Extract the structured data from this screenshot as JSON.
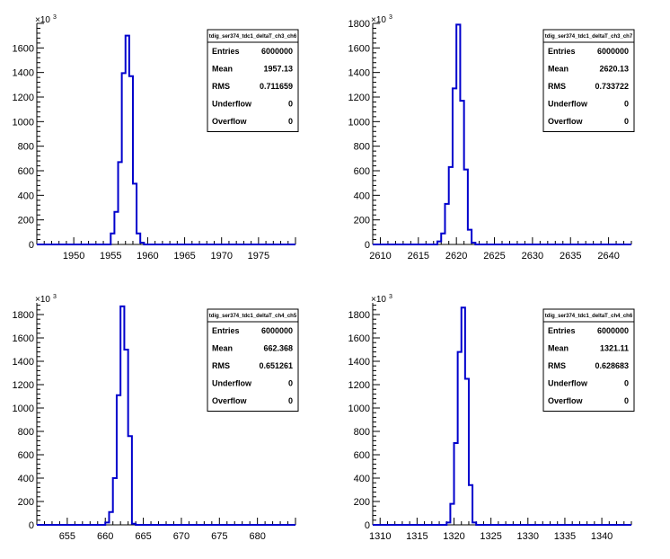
{
  "chart_data": [
    {
      "type": "histogram",
      "title": "tdig_ser374_tdc1_deltaT_ch3_ch6",
      "xlim": [
        1945,
        1980
      ],
      "ylim": [
        0,
        1800
      ],
      "y_exponent": "×10",
      "y_exponent_power": "3",
      "x_ticks": [
        1950,
        1955,
        1960,
        1965,
        1970,
        1975
      ],
      "y_ticks": [
        0,
        200,
        400,
        600,
        800,
        1000,
        1200,
        1400,
        1600
      ],
      "bin_width": 0.5,
      "bins": [
        {
          "x": 1955.0,
          "y": 90
        },
        {
          "x": 1955.5,
          "y": 265
        },
        {
          "x": 1956.0,
          "y": 670
        },
        {
          "x": 1956.5,
          "y": 1395
        },
        {
          "x": 1957.0,
          "y": 1700
        },
        {
          "x": 1957.5,
          "y": 1370
        },
        {
          "x": 1958.0,
          "y": 495
        },
        {
          "x": 1958.5,
          "y": 90
        },
        {
          "x": 1959.0,
          "y": 15
        }
      ],
      "stats": {
        "Entries": "6000000",
        "Mean": "1957.13",
        "RMS": "0.711659",
        "Underflow": "0",
        "Overflow": "0"
      }
    },
    {
      "type": "histogram",
      "title": "tdig_ser374_tdc1_deltaT_ch3_ch7",
      "xlim": [
        2609,
        2643
      ],
      "ylim": [
        0,
        1800
      ],
      "y_exponent": "×10",
      "y_exponent_power": "3",
      "x_ticks": [
        2610,
        2615,
        2620,
        2625,
        2630,
        2635,
        2640
      ],
      "y_ticks": [
        0,
        200,
        400,
        600,
        800,
        1000,
        1200,
        1400,
        1600,
        1800
      ],
      "bin_width": 0.5,
      "bins": [
        {
          "x": 2617.5,
          "y": 25
        },
        {
          "x": 2618.0,
          "y": 90
        },
        {
          "x": 2618.5,
          "y": 330
        },
        {
          "x": 2619.0,
          "y": 630
        },
        {
          "x": 2619.5,
          "y": 1270
        },
        {
          "x": 2620.0,
          "y": 1790
        },
        {
          "x": 2620.5,
          "y": 1170
        },
        {
          "x": 2621.0,
          "y": 610
        },
        {
          "x": 2621.5,
          "y": 120
        },
        {
          "x": 2622.0,
          "y": 15
        }
      ],
      "stats": {
        "Entries": "6000000",
        "Mean": "2620.13",
        "RMS": "0.733722",
        "Underflow": "0",
        "Overflow": "0"
      }
    },
    {
      "type": "histogram",
      "title": "tdig_ser374_tdc1_deltaT_ch4_ch5",
      "xlim": [
        651,
        685
      ],
      "ylim": [
        0,
        1900
      ],
      "y_exponent": "×10",
      "y_exponent_power": "3",
      "x_ticks": [
        655,
        660,
        665,
        670,
        675,
        680
      ],
      "y_ticks": [
        0,
        200,
        400,
        600,
        800,
        1000,
        1200,
        1400,
        1600,
        1800
      ],
      "bin_width": 0.5,
      "bins": [
        {
          "x": 660.0,
          "y": 20
        },
        {
          "x": 660.5,
          "y": 110
        },
        {
          "x": 661.0,
          "y": 400
        },
        {
          "x": 661.5,
          "y": 1110
        },
        {
          "x": 662.0,
          "y": 1870
        },
        {
          "x": 662.5,
          "y": 1500
        },
        {
          "x": 663.0,
          "y": 760
        },
        {
          "x": 663.5,
          "y": 10
        }
      ],
      "stats": {
        "Entries": "6000000",
        "Mean": "662.368",
        "RMS": "0.651261",
        "Underflow": "0",
        "Overflow": "0"
      }
    },
    {
      "type": "histogram",
      "title": "tdig_ser374_tdc1_deltaT_ch4_ch6",
      "xlim": [
        1309,
        1344
      ],
      "ylim": [
        0,
        1900
      ],
      "y_exponent": "×10",
      "y_exponent_power": "3",
      "x_ticks": [
        1310,
        1315,
        1320,
        1325,
        1330,
        1335,
        1340
      ],
      "y_ticks": [
        0,
        200,
        400,
        600,
        800,
        1000,
        1200,
        1400,
        1600,
        1800
      ],
      "bin_width": 0.5,
      "bins": [
        {
          "x": 1319.0,
          "y": 20
        },
        {
          "x": 1319.5,
          "y": 180
        },
        {
          "x": 1320.0,
          "y": 700
        },
        {
          "x": 1320.5,
          "y": 1480
        },
        {
          "x": 1321.0,
          "y": 1860
        },
        {
          "x": 1321.5,
          "y": 1250
        },
        {
          "x": 1322.0,
          "y": 340
        },
        {
          "x": 1322.5,
          "y": 20
        }
      ],
      "stats": {
        "Entries": "6000000",
        "Mean": "1321.11",
        "RMS": "0.628683",
        "Underflow": "0",
        "Overflow": "0"
      }
    }
  ],
  "colors": {
    "line": "#0000cc",
    "axis": "#000000"
  }
}
